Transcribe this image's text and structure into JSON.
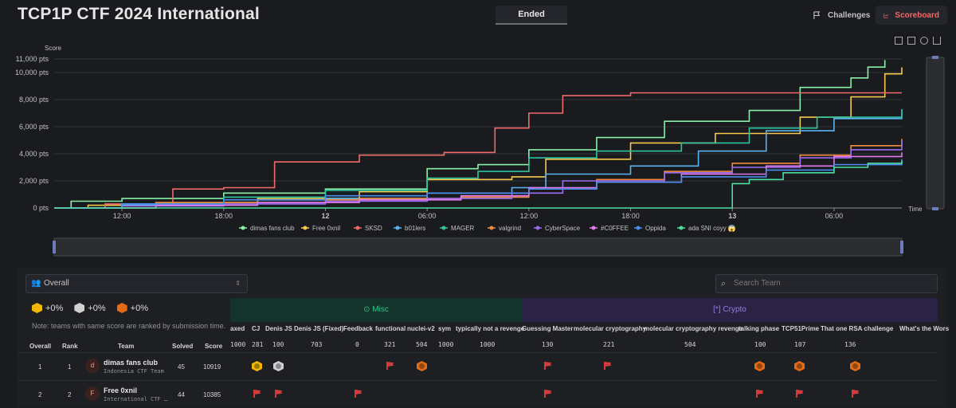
{
  "header": {
    "title": "TCP1P CTF 2024 International",
    "status": "Ended",
    "nav": {
      "challenges": "Challenges",
      "scoreboard": "Scoreboard"
    }
  },
  "chart_data": {
    "type": "line",
    "ylabel": "Score",
    "xlabel": "Time",
    "y_ticks": [
      "0 pts",
      "2,000 pts",
      "4,000 pts",
      "6,000 pts",
      "8,000 pts",
      "10,000 pts",
      "11,000 pts"
    ],
    "y_tick_values": [
      0,
      2000,
      4000,
      6000,
      8000,
      10000,
      11000
    ],
    "ylim": [
      0,
      11000
    ],
    "x_ticks": [
      "12:00",
      "18:00",
      "12",
      "06:00",
      "12:00",
      "18:00",
      "13",
      "06:00"
    ],
    "x_tick_hours": [
      12,
      18,
      24,
      30,
      36,
      42,
      48,
      54
    ],
    "xlim_hours": [
      8,
      58
    ],
    "legend_position": "bottom",
    "grid": true,
    "series": [
      {
        "name": "dimas fans club",
        "color": "#86f0a8",
        "points": [
          [
            8,
            0
          ],
          [
            9,
            500
          ],
          [
            12,
            700
          ],
          [
            18,
            1100
          ],
          [
            24,
            1400
          ],
          [
            30,
            2900
          ],
          [
            33,
            3200
          ],
          [
            36,
            4300
          ],
          [
            40,
            5200
          ],
          [
            44,
            6400
          ],
          [
            49,
            7200
          ],
          [
            52,
            8900
          ],
          [
            55,
            9600
          ],
          [
            56,
            10400
          ],
          [
            57,
            10919
          ]
        ]
      },
      {
        "name": "Free 0xnil",
        "color": "#f6c84c",
        "points": [
          [
            8,
            0
          ],
          [
            10,
            200
          ],
          [
            14,
            400
          ],
          [
            20,
            700
          ],
          [
            26,
            1200
          ],
          [
            30,
            2100
          ],
          [
            35,
            2300
          ],
          [
            37,
            3600
          ],
          [
            42,
            4800
          ],
          [
            47,
            5500
          ],
          [
            52,
            6700
          ],
          [
            55,
            8200
          ],
          [
            57,
            9900
          ],
          [
            58,
            10385
          ]
        ]
      },
      {
        "name": "SKSD",
        "color": "#f06a6a",
        "points": [
          [
            8,
            0
          ],
          [
            11,
            300
          ],
          [
            15,
            1400
          ],
          [
            18,
            1500
          ],
          [
            21,
            3400
          ],
          [
            26,
            3900
          ],
          [
            31,
            4100
          ],
          [
            34,
            5900
          ],
          [
            36,
            7000
          ],
          [
            38,
            8300
          ],
          [
            42,
            8500
          ],
          [
            58,
            8500
          ]
        ]
      },
      {
        "name": "b01lers",
        "color": "#5ab3f0",
        "points": [
          [
            8,
            0
          ],
          [
            12,
            200
          ],
          [
            18,
            400
          ],
          [
            24,
            700
          ],
          [
            30,
            1100
          ],
          [
            35,
            1500
          ],
          [
            37,
            2500
          ],
          [
            42,
            3100
          ],
          [
            46,
            4200
          ],
          [
            50,
            5700
          ],
          [
            54,
            6600
          ],
          [
            58,
            7300
          ]
        ]
      },
      {
        "name": "MAGER",
        "color": "#2ec4a0",
        "points": [
          [
            8,
            0
          ],
          [
            12,
            300
          ],
          [
            18,
            800
          ],
          [
            24,
            1300
          ],
          [
            30,
            2200
          ],
          [
            33,
            2700
          ],
          [
            36,
            3700
          ],
          [
            40,
            4200
          ],
          [
            45,
            4800
          ],
          [
            49,
            5900
          ],
          [
            53,
            6700
          ],
          [
            58,
            7200
          ]
        ]
      },
      {
        "name": "valgrind",
        "color": "#f08a3c",
        "points": [
          [
            8,
            0
          ],
          [
            14,
            400
          ],
          [
            20,
            600
          ],
          [
            26,
            700
          ],
          [
            32,
            800
          ],
          [
            36,
            1400
          ],
          [
            40,
            2100
          ],
          [
            44,
            2700
          ],
          [
            48,
            3300
          ],
          [
            52,
            3900
          ],
          [
            55,
            4600
          ],
          [
            58,
            5100
          ]
        ]
      },
      {
        "name": "CyberSpace",
        "color": "#9a6cf0",
        "points": [
          [
            8,
            0
          ],
          [
            12,
            150
          ],
          [
            18,
            300
          ],
          [
            24,
            500
          ],
          [
            30,
            700
          ],
          [
            35,
            1100
          ],
          [
            38,
            2000
          ],
          [
            44,
            2600
          ],
          [
            48,
            3000
          ],
          [
            52,
            3700
          ],
          [
            55,
            4300
          ],
          [
            58,
            5000
          ]
        ]
      },
      {
        "name": "#C0FFEE",
        "color": "#e27af0",
        "points": [
          [
            8,
            0
          ],
          [
            14,
            200
          ],
          [
            20,
            400
          ],
          [
            26,
            600
          ],
          [
            32,
            900
          ],
          [
            36,
            1500
          ],
          [
            40,
            1900
          ],
          [
            45,
            2500
          ],
          [
            50,
            3100
          ],
          [
            54,
            3800
          ],
          [
            58,
            4100
          ]
        ]
      },
      {
        "name": "Oppida",
        "color": "#4a8cf0",
        "points": [
          [
            8,
            0
          ],
          [
            12,
            300
          ],
          [
            18,
            600
          ],
          [
            24,
            900
          ],
          [
            30,
            1100
          ],
          [
            36,
            1400
          ],
          [
            40,
            1900
          ],
          [
            45,
            2300
          ],
          [
            50,
            2800
          ],
          [
            54,
            3200
          ],
          [
            58,
            3600
          ]
        ]
      },
      {
        "name": "ada SNI coyy 😱",
        "color": "#4ae0a0",
        "points": [
          [
            8,
            0
          ],
          [
            47,
            0
          ],
          [
            48,
            1800
          ],
          [
            49,
            2100
          ],
          [
            51,
            2600
          ],
          [
            54,
            3000
          ],
          [
            56,
            3300
          ],
          [
            58,
            3500
          ]
        ]
      }
    ]
  },
  "scoreboard": {
    "filter": "Overall",
    "search_placeholder": "Search Team",
    "bonus": {
      "first": "+0%",
      "second": "+0%",
      "third": "+0%"
    },
    "note": "Note: teams with same score are ranked by submission time.",
    "categories": {
      "misc": "Misc",
      "crypto": "Crypto"
    },
    "headers": {
      "overall": "Overall",
      "rank": "Rank",
      "team": "Team",
      "solved": "Solved",
      "score": "Score"
    },
    "challenges": [
      {
        "name": "axed",
        "points": "1000"
      },
      {
        "name": "CJ",
        "points": "281"
      },
      {
        "name": "Denis JS",
        "points": "100"
      },
      {
        "name": "Denis JS (Fixed)",
        "points": "703"
      },
      {
        "name": "Feedback",
        "points": "0"
      },
      {
        "name": "functional",
        "points": "321"
      },
      {
        "name": "nuclei-v2",
        "points": "504"
      },
      {
        "name": "sym",
        "points": "1000"
      },
      {
        "name": "typically not a revenge",
        "points": "1000"
      },
      {
        "name": "Guessing Master",
        "points": "130"
      },
      {
        "name": "molecular cryptography",
        "points": "221"
      },
      {
        "name": "molecular cryptography revenge",
        "points": "504"
      },
      {
        "name": "talking phase",
        "points": "100"
      },
      {
        "name": "TCP51Prime",
        "points": "107"
      },
      {
        "name": "That one RSA challenge",
        "points": "136"
      },
      {
        "name": "What's the Wors",
        "points": ""
      }
    ],
    "rows": [
      {
        "overall": "1",
        "rank": "1",
        "initial": "d",
        "team": "dimas fans club",
        "sub": "Indonesia CTF Team",
        "solved": "45",
        "score": "10919"
      },
      {
        "overall": "2",
        "rank": "2",
        "initial": "F",
        "team": "Free 0xnil",
        "sub": "International CTF …",
        "solved": "44",
        "score": "10385"
      }
    ]
  }
}
